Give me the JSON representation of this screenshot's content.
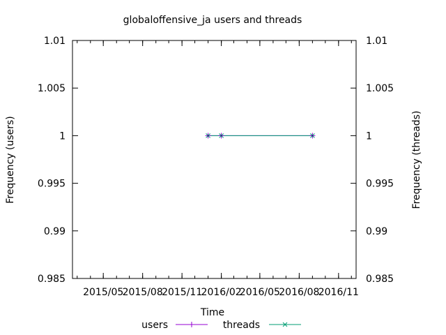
{
  "chart_data": {
    "type": "line",
    "title": "globaloffensive_ja users and threads",
    "xlabel": "Time",
    "ylabel": "Frequency (users)",
    "y2label": "Frequency (threads)",
    "x_ticks": [
      "2015/05",
      "2015/08",
      "2015/11",
      "2016/02",
      "2016/05",
      "2016/08",
      "2016/11"
    ],
    "y_ticks": [
      "0.985",
      "0.99",
      "0.995",
      "1",
      "1.005",
      "1.01"
    ],
    "y2_ticks": [
      "0.985",
      "0.99",
      "0.995",
      "1",
      "1.005",
      "1.01"
    ],
    "xlim": [
      "2015-02-18",
      "2016-12-12"
    ],
    "ylim": [
      0.985,
      1.01
    ],
    "grid": false,
    "legend_position": "bottom",
    "series": [
      {
        "name": "users",
        "color": "#9400d3",
        "marker": "plus",
        "x": [
          "2016-01-01",
          "2016-02-01",
          "2016-09-01"
        ],
        "y": [
          1,
          1,
          1
        ]
      },
      {
        "name": "threads",
        "color": "#009e73",
        "marker": "cross",
        "x": [
          "2016-01-01",
          "2016-02-01",
          "2016-09-01"
        ],
        "y": [
          1,
          1,
          1
        ]
      }
    ]
  }
}
